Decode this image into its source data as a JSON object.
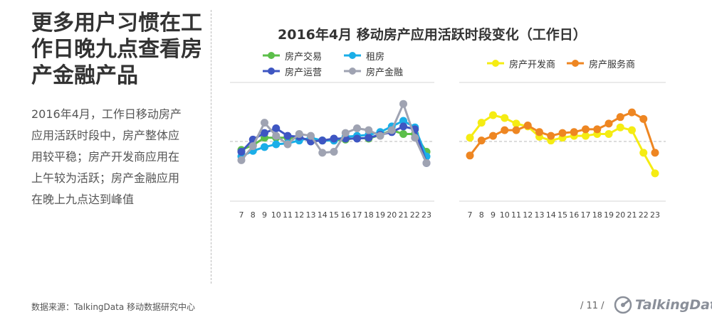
{
  "headline": [
    "更多用户习惯在工",
    "作日晚九点查看房",
    "产金融产品"
  ],
  "description": [
    "2016年4月，工作日移动房产",
    "应用活跃时段中，房产整体应",
    "用较平稳；房产开发商应用在",
    "上午较为活跃；房产金融应用",
    "在晚上九点达到峰值"
  ],
  "footer": {
    "source": "数据来源：TalkingData 移动数据研究中心",
    "page": "/ 11 /",
    "logo": "TalkingData"
  },
  "chart_data": {
    "type": "line",
    "title": "2016年4月 移动房产应用活跃时段变化（工作日）",
    "legend_left": [
      "房产交易",
      "租房",
      "房产运营",
      "房产金融"
    ],
    "legend_right": [
      "房产开发商",
      "房产服务商"
    ],
    "colors": {
      "房产交易": "#5cbf4a",
      "租房": "#1aaee8",
      "房产运营": "#3e56c2",
      "房产金融": "#9fa3b2",
      "房产开发商": "#f5ec13",
      "房产服务商": "#ee8622"
    },
    "x": [
      7,
      8,
      9,
      10,
      11,
      12,
      13,
      14,
      15,
      16,
      17,
      18,
      19,
      20,
      21,
      22,
      23
    ],
    "charts": [
      {
        "series": [
          {
            "name": "房产交易",
            "values": [
              -0.9,
              -0.4,
              0.4,
              0.4,
              0.4,
              0.3,
              0.2,
              0.1,
              0.1,
              0.2,
              0.4,
              0.3,
              0.7,
              1.2,
              0.8,
              0.8,
              -1.1
            ]
          },
          {
            "name": "租房",
            "values": [
              -1.6,
              -1.0,
              -0.6,
              -0.3,
              -0.2,
              0.1,
              0.4,
              0.1,
              0.1,
              0.5,
              0.6,
              0.7,
              1.0,
              1.6,
              2.2,
              1.5,
              -1.6
            ]
          },
          {
            "name": "房产运营",
            "values": [
              -1.1,
              0.2,
              0.9,
              1.4,
              0.6,
              0.5,
              0.0,
              0.1,
              0.3,
              0.3,
              0.3,
              0.4,
              0.7,
              1.0,
              1.6,
              1.3,
              -2.3
            ]
          },
          {
            "name": "房产金融",
            "values": [
              -2.0,
              -0.5,
              2.0,
              0.6,
              -0.3,
              0.8,
              0.6,
              -1.2,
              -1.1,
              0.9,
              1.4,
              1.2,
              0.6,
              1.2,
              4.0,
              0.4,
              -2.3
            ]
          }
        ]
      },
      {
        "series": [
          {
            "name": "房产开发商",
            "values": [
              0.4,
              2.0,
              2.8,
              2.5,
              1.9,
              1.6,
              0.5,
              0.1,
              0.4,
              0.6,
              0.6,
              0.8,
              0.8,
              1.5,
              1.2,
              -1.2,
              -3.4
            ]
          },
          {
            "name": "房产服务商",
            "values": [
              -1.5,
              0.1,
              0.6,
              1.2,
              1.2,
              1.7,
              1.0,
              0.6,
              0.9,
              1.0,
              1.3,
              1.3,
              1.9,
              2.6,
              3.1,
              2.4,
              -1.2
            ]
          }
        ]
      }
    ]
  }
}
